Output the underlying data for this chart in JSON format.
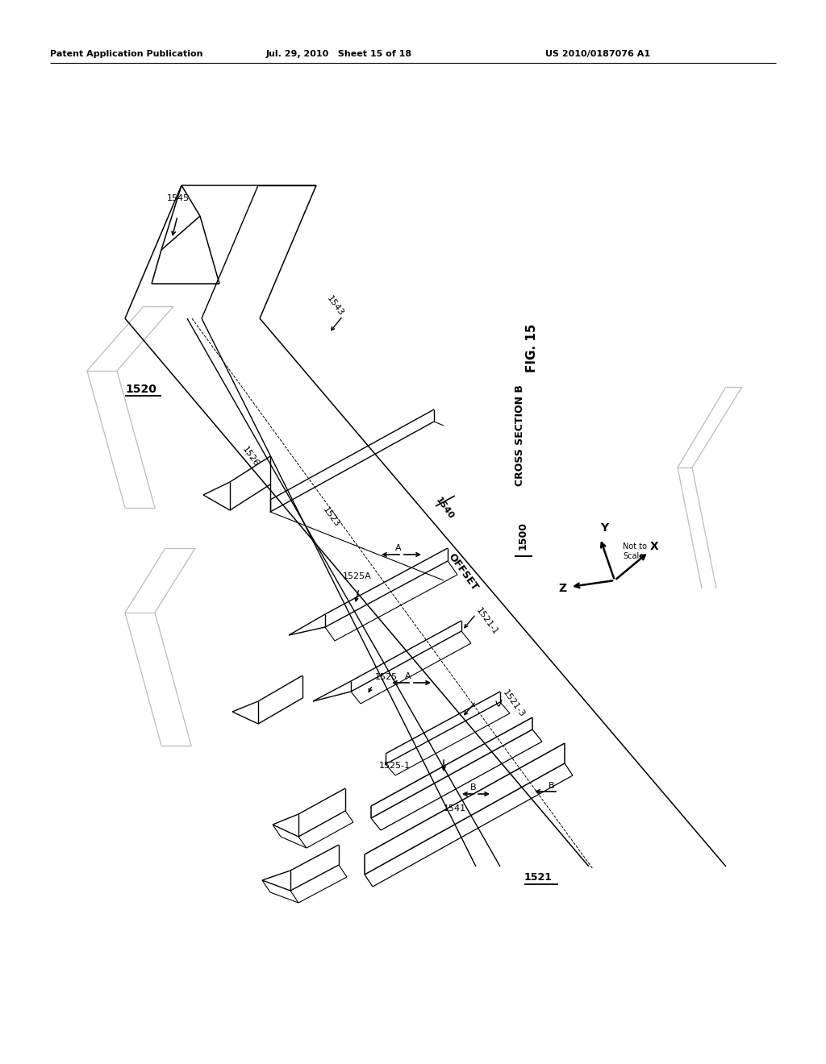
{
  "header_left": "Patent Application Publication",
  "header_center": "Jul. 29, 2010   Sheet 15 of 18",
  "header_right": "US 2010/0187076 A1",
  "fig_label": "FIG. 15",
  "fig_sublabel": "CROSS SECTION B",
  "fig_number": "1500",
  "bg_color": "#ffffff",
  "lc": "#000000",
  "gc": "#bbbbbb",
  "note": "Not to\nScale"
}
